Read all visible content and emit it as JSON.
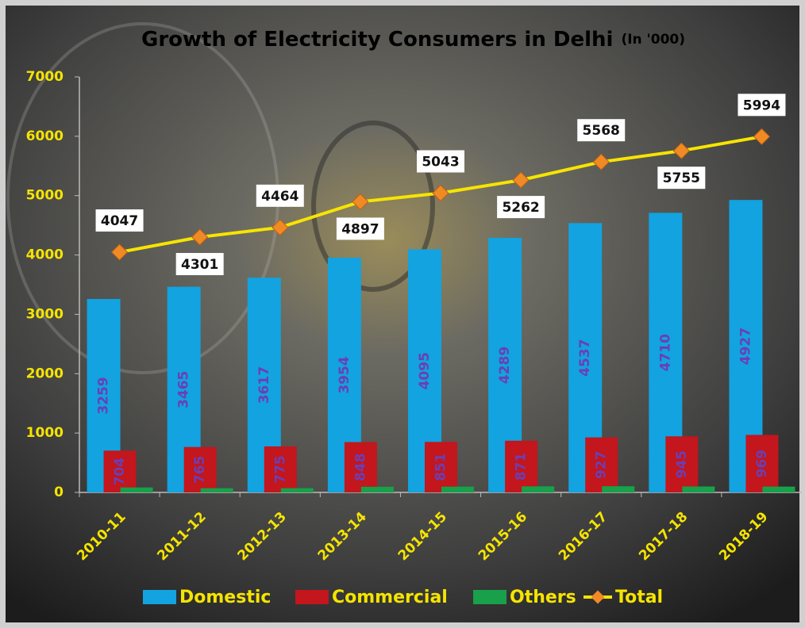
{
  "chart_data": {
    "type": "bar",
    "title": "Growth of Electricity Consumers in Delhi",
    "subtitle": "(In '000)",
    "categories": [
      "2010-11",
      "2011-12",
      "2012-13",
      "2013-14",
      "2014-15",
      "2015-16",
      "2016-17",
      "2017-18",
      "2018-19"
    ],
    "series": [
      {
        "name": "Domestic",
        "type": "bar",
        "color": "#12a3e0",
        "label_color": "#6a3fb5",
        "values": [
          3259,
          3465,
          3617,
          3954,
          4095,
          4289,
          4537,
          4710,
          4927
        ]
      },
      {
        "name": "Commercial",
        "type": "bar",
        "color": "#c3161d",
        "label_color": "#6a3fb5",
        "values": [
          704,
          765,
          775,
          848,
          851,
          871,
          927,
          945,
          969
        ]
      },
      {
        "name": "Others",
        "type": "bar",
        "color": "#18a04a",
        "values": [
          84,
          71,
          72,
          95,
          97,
          102,
          104,
          100,
          98
        ]
      },
      {
        "name": "Total",
        "type": "line",
        "color": "#f7e400",
        "marker_color": "#f08a24",
        "values": [
          4047,
          4301,
          4464,
          4897,
          5043,
          5262,
          5568,
          5755,
          5994
        ]
      }
    ],
    "ylim": [
      0,
      7000
    ],
    "yticks": [
      0,
      1000,
      2000,
      3000,
      4000,
      5000,
      6000,
      7000
    ],
    "axis_color": "#f5e400",
    "grid": false,
    "legend": "bottom"
  }
}
